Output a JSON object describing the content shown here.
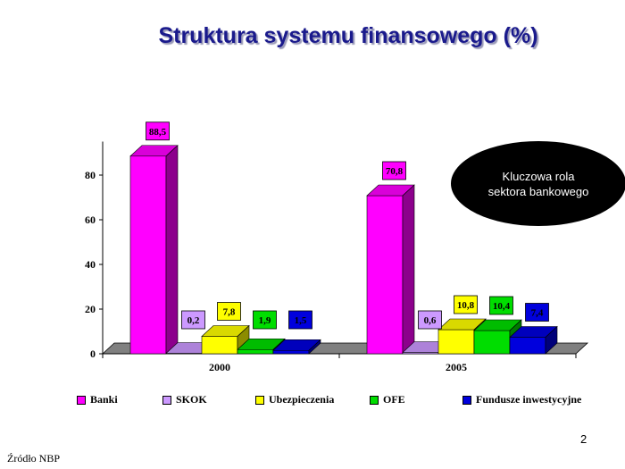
{
  "slide": {
    "title": "Struktura systemu finansowego (%)",
    "callout_line1": "Kluczowa rola",
    "callout_line2": "sektora bankowego",
    "page_number": "2",
    "source": "Źródło NBP"
  },
  "chart_data": {
    "type": "bar",
    "title": "",
    "categories": [
      "2000",
      "2005"
    ],
    "series": [
      {
        "name": "Banki",
        "color": "#ff00ff",
        "values": [
          88.5,
          70.8
        ],
        "labels": [
          "88,5",
          "70,8"
        ]
      },
      {
        "name": "SKOK",
        "color": "#cc99ff",
        "values": [
          0.2,
          0.6
        ],
        "labels": [
          "0,2",
          "0,6"
        ]
      },
      {
        "name": "Ubezpieczenia",
        "color": "#ffff00",
        "values": [
          7.8,
          10.8
        ],
        "labels": [
          "7,8",
          "10,8"
        ]
      },
      {
        "name": "OFE",
        "color": "#00dd00",
        "values": [
          1.9,
          10.4
        ],
        "labels": [
          "1,9",
          "10,4"
        ]
      },
      {
        "name": "Fundusze inwestycyjne",
        "color": "#0000dd",
        "values": [
          1.5,
          7.4
        ],
        "labels": [
          "1,5",
          "7,4"
        ]
      }
    ],
    "yticks": [
      0,
      20,
      40,
      60,
      80
    ],
    "ylim": [
      0,
      95
    ],
    "xlabel": "",
    "ylabel": "",
    "legend_position": "bottom",
    "style": "3d-bars"
  }
}
